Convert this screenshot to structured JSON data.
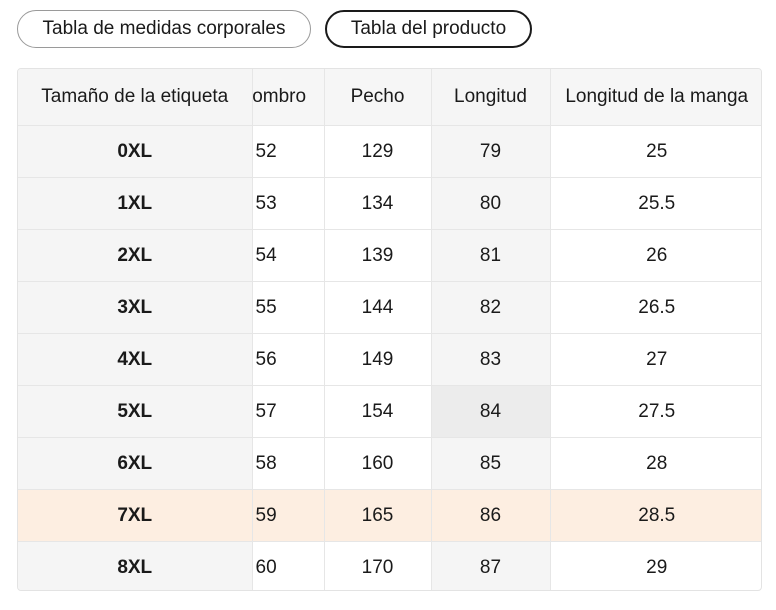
{
  "tabs": {
    "body_chart": "Tabla de medidas corporales",
    "product_chart": "Tabla del producto"
  },
  "table": {
    "headers": {
      "size": "Tamaño de la etiqueta",
      "shoulder": "Hombro",
      "chest": "Pecho",
      "length": "Longitud",
      "sleeve": "Longitud de la manga"
    },
    "rows": [
      {
        "size": "0XL",
        "shoulder": "52",
        "chest": "129",
        "length": "79",
        "sleeve": "25"
      },
      {
        "size": "1XL",
        "shoulder": "53",
        "chest": "134",
        "length": "80",
        "sleeve": "25.5"
      },
      {
        "size": "2XL",
        "shoulder": "54",
        "chest": "139",
        "length": "81",
        "sleeve": "26"
      },
      {
        "size": "3XL",
        "shoulder": "55",
        "chest": "144",
        "length": "82",
        "sleeve": "26.5"
      },
      {
        "size": "4XL",
        "shoulder": "56",
        "chest": "149",
        "length": "83",
        "sleeve": "27"
      },
      {
        "size": "5XL",
        "shoulder": "57",
        "chest": "154",
        "length": "84",
        "sleeve": "27.5"
      },
      {
        "size": "6XL",
        "shoulder": "58",
        "chest": "160",
        "length": "85",
        "sleeve": "28"
      },
      {
        "size": "7XL",
        "shoulder": "59",
        "chest": "165",
        "length": "86",
        "sleeve": "28.5"
      },
      {
        "size": "8XL",
        "shoulder": "60",
        "chest": "170",
        "length": "87",
        "sleeve": "29"
      }
    ],
    "highlighted_row": "7XL",
    "highlighted_column": "length",
    "highlighted_cell": {
      "row": "5XL",
      "column": "length"
    }
  },
  "colors": {
    "row_highlight": "#fdeee1",
    "column_highlight": "#f5f5f5",
    "cell_highlight": "#ececec",
    "border": "#e6e6e6"
  }
}
